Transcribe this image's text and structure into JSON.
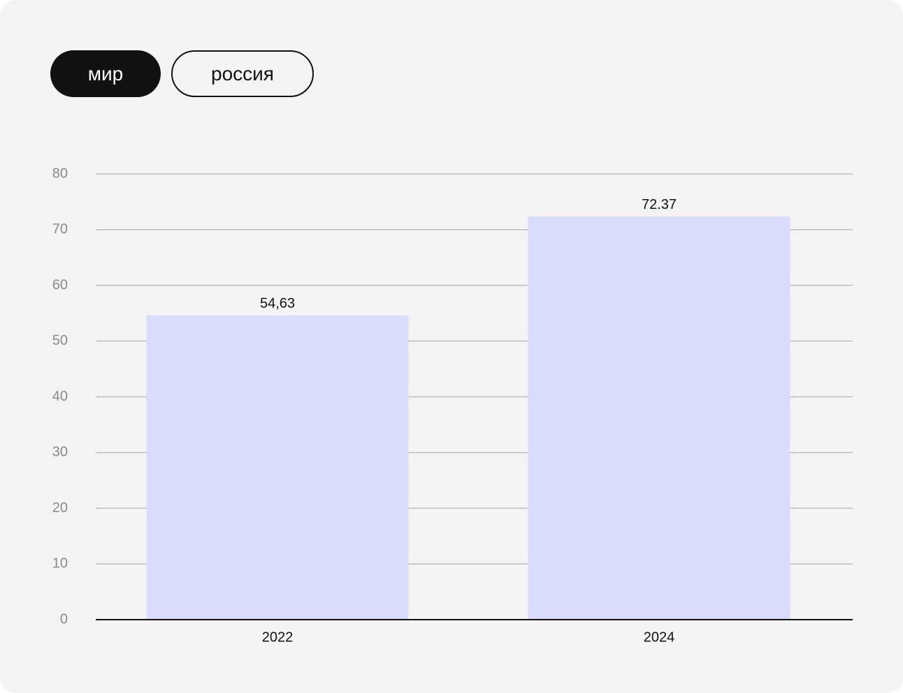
{
  "tabs": [
    "мир",
    "россия"
  ],
  "chart_data": {
    "type": "bar",
    "categories": [
      "2022",
      "2024"
    ],
    "values": [
      54.63,
      72.37
    ],
    "value_labels": [
      "54,63",
      "72.37"
    ],
    "color": "#d9dcfd",
    "ylim": [
      0,
      80
    ],
    "yticks": [
      0,
      10,
      20,
      30,
      40,
      50,
      60,
      70,
      80
    ],
    "grid": true
  }
}
